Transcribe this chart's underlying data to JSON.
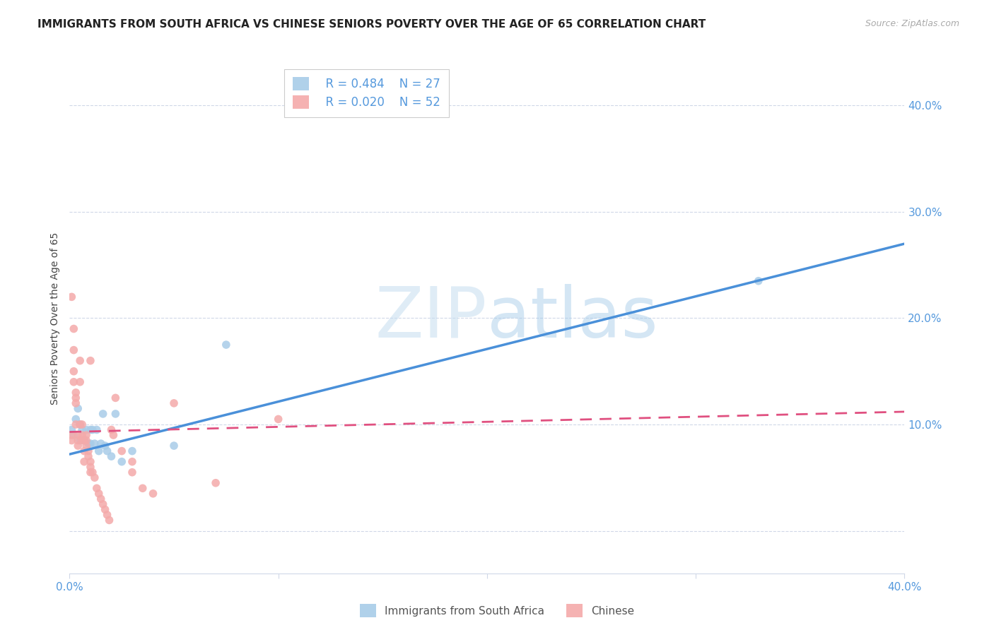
{
  "title": "IMMIGRANTS FROM SOUTH AFRICA VS CHINESE SENIORS POVERTY OVER THE AGE OF 65 CORRELATION CHART",
  "source": "Source: ZipAtlas.com",
  "ylabel": "Seniors Poverty Over the Age of 65",
  "xlim": [
    0.0,
    0.4
  ],
  "ylim": [
    -0.04,
    0.44
  ],
  "yticks": [
    0.0,
    0.1,
    0.2,
    0.3,
    0.4
  ],
  "ytick_labels": [
    "",
    "10.0%",
    "20.0%",
    "30.0%",
    "40.0%"
  ],
  "xtick_positions": [
    0.0,
    0.1,
    0.2,
    0.3,
    0.4
  ],
  "xtick_labels": [
    "0.0%",
    "",
    "",
    "",
    "40.0%"
  ],
  "legend_blue_r": "R = 0.484",
  "legend_blue_n": "N = 27",
  "legend_pink_r": "R = 0.020",
  "legend_pink_n": "N = 52",
  "legend_blue_label": "Immigrants from South Africa",
  "legend_pink_label": "Chinese",
  "watermark_zip": "ZIP",
  "watermark_atlas": "atlas",
  "blue_color": "#a8cce8",
  "pink_color": "#f4aaaa",
  "line_blue": "#4a90d9",
  "line_pink": "#e05080",
  "tick_color": "#5599dd",
  "blue_scatter_x": [
    0.001,
    0.002,
    0.003,
    0.004,
    0.005,
    0.005,
    0.006,
    0.007,
    0.008,
    0.009,
    0.01,
    0.01,
    0.011,
    0.012,
    0.013,
    0.014,
    0.015,
    0.016,
    0.017,
    0.018,
    0.02,
    0.022,
    0.025,
    0.03,
    0.05,
    0.075,
    0.33
  ],
  "blue_scatter_y": [
    0.095,
    0.09,
    0.105,
    0.115,
    0.1,
    0.085,
    0.095,
    0.085,
    0.095,
    0.082,
    0.095,
    0.082,
    0.095,
    0.082,
    0.095,
    0.075,
    0.082,
    0.11,
    0.08,
    0.075,
    0.07,
    0.11,
    0.065,
    0.075,
    0.08,
    0.175,
    0.235
  ],
  "pink_scatter_x": [
    0.001,
    0.001,
    0.001,
    0.002,
    0.002,
    0.002,
    0.002,
    0.003,
    0.003,
    0.003,
    0.003,
    0.004,
    0.004,
    0.004,
    0.005,
    0.005,
    0.005,
    0.006,
    0.006,
    0.006,
    0.007,
    0.007,
    0.007,
    0.008,
    0.008,
    0.008,
    0.009,
    0.009,
    0.01,
    0.01,
    0.01,
    0.011,
    0.012,
    0.013,
    0.014,
    0.015,
    0.016,
    0.017,
    0.018,
    0.019,
    0.02,
    0.021,
    0.022,
    0.025,
    0.03,
    0.035,
    0.04,
    0.05,
    0.07,
    0.1,
    0.01,
    0.03
  ],
  "pink_scatter_y": [
    0.22,
    0.09,
    0.085,
    0.19,
    0.17,
    0.15,
    0.14,
    0.13,
    0.125,
    0.12,
    0.1,
    0.09,
    0.085,
    0.08,
    0.16,
    0.14,
    0.1,
    0.1,
    0.09,
    0.085,
    0.085,
    0.075,
    0.065,
    0.09,
    0.085,
    0.08,
    0.075,
    0.07,
    0.065,
    0.06,
    0.055,
    0.055,
    0.05,
    0.04,
    0.035,
    0.03,
    0.025,
    0.02,
    0.015,
    0.01,
    0.095,
    0.09,
    0.125,
    0.075,
    0.065,
    0.04,
    0.035,
    0.12,
    0.045,
    0.105,
    0.16,
    0.055
  ],
  "blue_line_x0": 0.0,
  "blue_line_x1": 0.4,
  "blue_line_y0": 0.072,
  "blue_line_y1": 0.27,
  "pink_line_x0": 0.0,
  "pink_line_x1": 0.4,
  "pink_line_y0": 0.093,
  "pink_line_y1": 0.112,
  "grid_color": "#d0d8e8",
  "background_color": "#ffffff",
  "title_fontsize": 11,
  "axis_label_fontsize": 10,
  "tick_fontsize": 11,
  "marker_size": 70
}
